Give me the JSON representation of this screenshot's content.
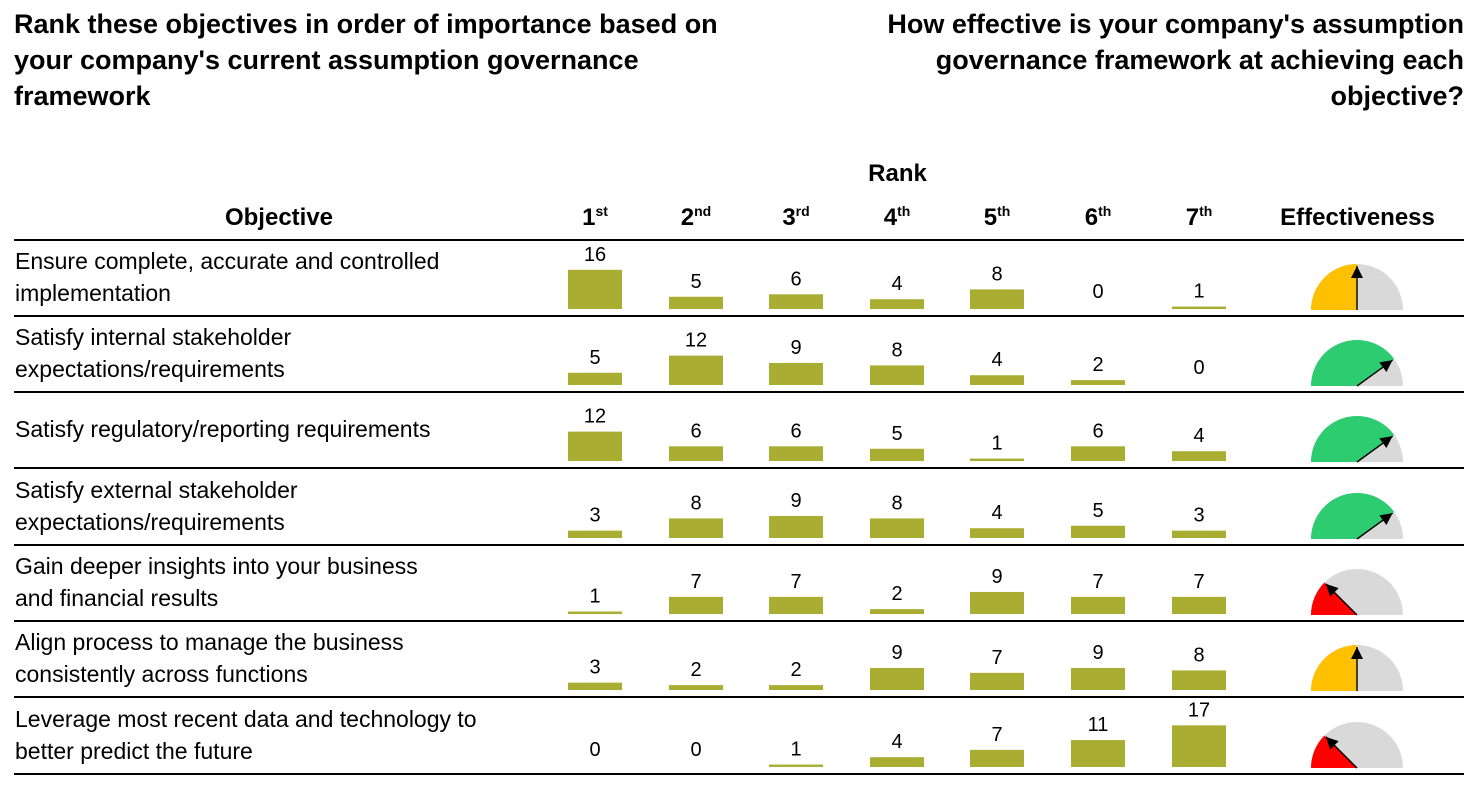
{
  "titles": {
    "left": "Rank these objectives in order of importance based on your company's current assumption governance framework",
    "right": "How effective is your company's assumption governance framework at achieving each objective?"
  },
  "headers": {
    "rank": "Rank",
    "objective": "Objective",
    "effectiveness": "Effectiveness",
    "ranks": [
      {
        "num": "1",
        "suffix": "st"
      },
      {
        "num": "2",
        "suffix": "nd"
      },
      {
        "num": "3",
        "suffix": "rd"
      },
      {
        "num": "4",
        "suffix": "th"
      },
      {
        "num": "5",
        "suffix": "th"
      },
      {
        "num": "6",
        "suffix": "th"
      },
      {
        "num": "7",
        "suffix": "th"
      }
    ]
  },
  "colors": {
    "bar": "#a9ae33",
    "gauge_track": "#d9d9d9",
    "gauge_orange": "#ffc000",
    "gauge_green": "#2ecc71",
    "gauge_red": "#ff0000"
  },
  "chart_data": {
    "type": "bar",
    "categories": [
      "1st",
      "2nd",
      "3rd",
      "4th",
      "5th",
      "6th",
      "7th"
    ],
    "rows": [
      {
        "objective": [
          "Ensure complete, accurate and controlled",
          "implementation"
        ],
        "values": [
          16,
          5,
          6,
          4,
          8,
          0,
          1
        ],
        "effectiveness": {
          "level": 0.5,
          "color": "orange"
        }
      },
      {
        "objective": [
          "Satisfy internal stakeholder",
          "expectations/requirements"
        ],
        "values": [
          5,
          12,
          9,
          8,
          4,
          2,
          0
        ],
        "effectiveness": {
          "level": 0.8,
          "color": "green"
        }
      },
      {
        "objective": [
          "Satisfy regulatory/reporting requirements"
        ],
        "values": [
          12,
          6,
          6,
          5,
          1,
          6,
          4
        ],
        "effectiveness": {
          "level": 0.8,
          "color": "green"
        }
      },
      {
        "objective": [
          "Satisfy external stakeholder",
          "expectations/requirements"
        ],
        "values": [
          3,
          8,
          9,
          8,
          4,
          5,
          3
        ],
        "effectiveness": {
          "level": 0.8,
          "color": "green"
        }
      },
      {
        "objective": [
          "Gain deeper insights into your business",
          "and financial results"
        ],
        "values": [
          1,
          7,
          7,
          2,
          9,
          7,
          7
        ],
        "effectiveness": {
          "level": 0.25,
          "color": "red"
        }
      },
      {
        "objective": [
          "Align process to manage the business",
          "consistently across functions"
        ],
        "values": [
          3,
          2,
          2,
          9,
          7,
          9,
          8
        ],
        "effectiveness": {
          "level": 0.5,
          "color": "orange"
        }
      },
      {
        "objective": [
          "Leverage most recent data and technology to",
          "better predict the future"
        ],
        "values": [
          0,
          0,
          1,
          4,
          7,
          11,
          17
        ],
        "effectiveness": {
          "level": 0.25,
          "color": "red"
        }
      }
    ]
  }
}
